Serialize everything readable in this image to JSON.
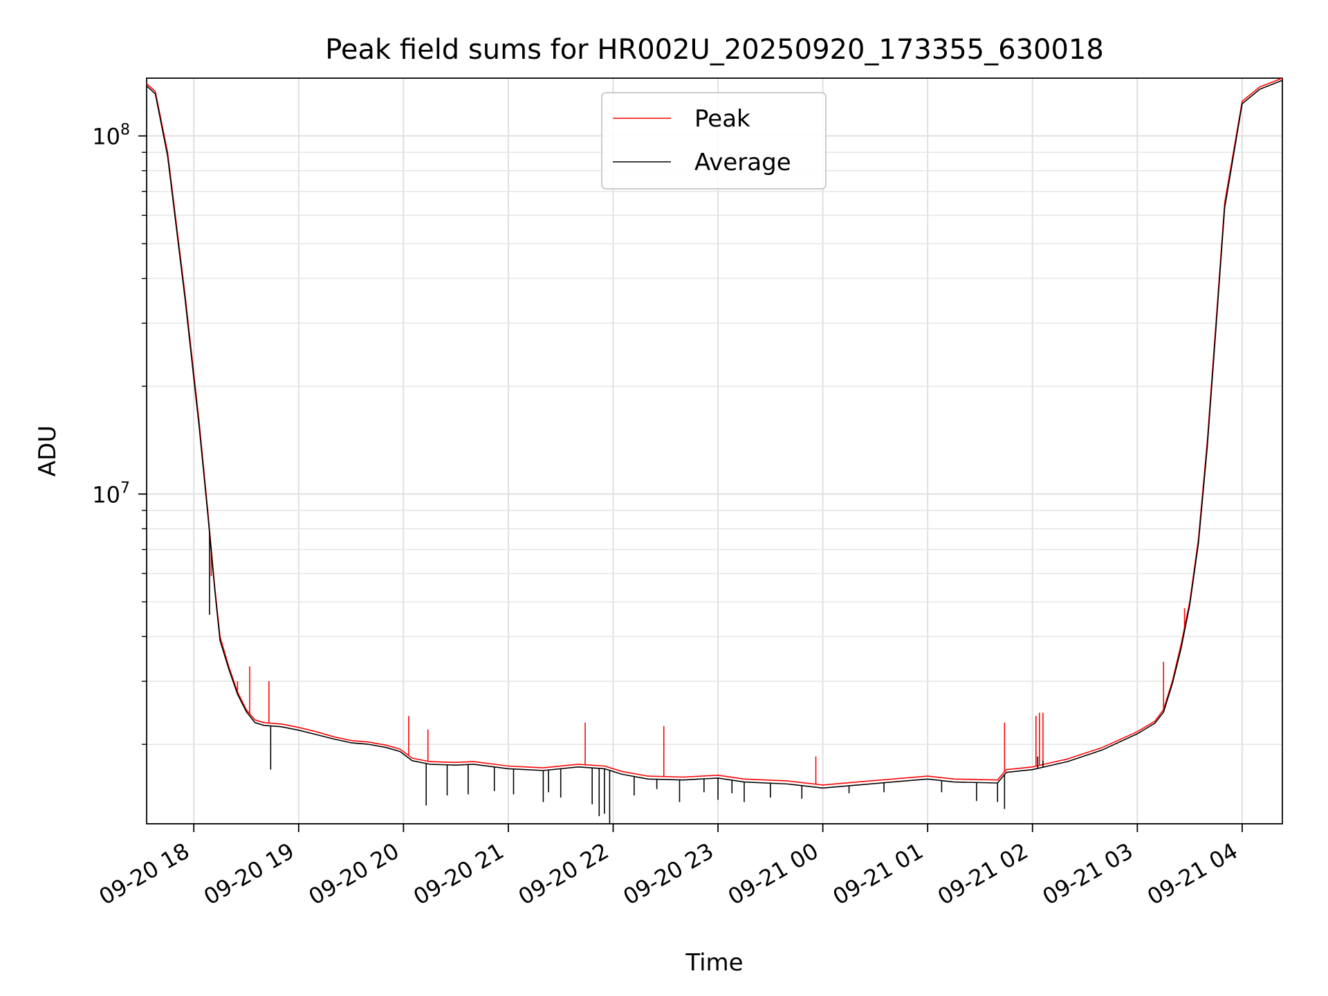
{
  "chart_data": {
    "type": "line",
    "title": "Peak field sums for HR002U_20250920_173355_630018",
    "xlabel": "Time",
    "ylabel": "ADU",
    "yscale": "log",
    "ylim": [
      1200000,
      145000000
    ],
    "xlim": [
      "09-20 17:33",
      "09-21 04:23"
    ],
    "grid": true,
    "legend": "upper center",
    "xticks": [
      {
        "t": "09-20 18:00",
        "label": "09-20 18"
      },
      {
        "t": "09-20 19:00",
        "label": "09-20 19"
      },
      {
        "t": "09-20 20:00",
        "label": "09-20 20"
      },
      {
        "t": "09-20 21:00",
        "label": "09-20 21"
      },
      {
        "t": "09-20 22:00",
        "label": "09-20 22"
      },
      {
        "t": "09-20 23:00",
        "label": "09-20 23"
      },
      {
        "t": "09-21 00:00",
        "label": "09-21 00"
      },
      {
        "t": "09-21 01:00",
        "label": "09-21 01"
      },
      {
        "t": "09-21 02:00",
        "label": "09-21 02"
      },
      {
        "t": "09-21 03:00",
        "label": "09-21 03"
      },
      {
        "t": "09-21 04:00",
        "label": "09-21 04"
      }
    ],
    "yticks": [
      {
        "value": 10000000,
        "base": "10",
        "exp": "7"
      },
      {
        "value": 100000000,
        "base": "10",
        "exp": "8"
      }
    ],
    "colors": {
      "peak": "#ff0000",
      "average": "#000000"
    },
    "series": [
      {
        "name": "Peak",
        "color": "#ff0000",
        "points": [
          [
            "09-20 17:33",
            140000000
          ],
          [
            "09-20 17:38",
            133000000
          ],
          [
            "09-20 17:45",
            90000000
          ],
          [
            "09-20 17:55",
            36000000
          ],
          [
            "09-20 18:03",
            16000000
          ],
          [
            "09-20 18:08",
            9000000
          ],
          [
            "09-20 18:12",
            5500000
          ],
          [
            "09-20 18:15",
            4000000
          ],
          [
            "09-20 18:20",
            3300000
          ],
          [
            "09-20 18:25",
            2800000
          ],
          [
            "09-20 18:30",
            2500000
          ],
          [
            "09-20 18:35",
            2340000
          ],
          [
            "09-20 18:40",
            2300000
          ],
          [
            "09-20 18:50",
            2280000
          ],
          [
            "09-20 19:00",
            2230000
          ],
          [
            "09-20 19:10",
            2170000
          ],
          [
            "09-20 19:20",
            2100000
          ],
          [
            "09-20 19:30",
            2050000
          ],
          [
            "09-20 19:40",
            2030000
          ],
          [
            "09-20 19:50",
            1990000
          ],
          [
            "09-20 19:58",
            1940000
          ],
          [
            "09-20 20:05",
            1830000
          ],
          [
            "09-20 20:15",
            1790000
          ],
          [
            "09-20 20:30",
            1780000
          ],
          [
            "09-20 20:40",
            1790000
          ],
          [
            "09-20 21:00",
            1740000
          ],
          [
            "09-20 21:20",
            1720000
          ],
          [
            "09-20 21:40",
            1760000
          ],
          [
            "09-20 21:55",
            1740000
          ],
          [
            "09-20 22:05",
            1680000
          ],
          [
            "09-20 22:20",
            1630000
          ],
          [
            "09-20 22:40",
            1620000
          ],
          [
            "09-20 23:00",
            1640000
          ],
          [
            "09-20 23:15",
            1600000
          ],
          [
            "09-20 23:40",
            1580000
          ],
          [
            "09-21 00:00",
            1540000
          ],
          [
            "09-21 00:20",
            1570000
          ],
          [
            "09-21 00:40",
            1600000
          ],
          [
            "09-21 01:00",
            1630000
          ],
          [
            "09-21 01:15",
            1600000
          ],
          [
            "09-21 01:40",
            1590000
          ],
          [
            "09-21 01:45",
            1700000
          ],
          [
            "09-21 02:00",
            1730000
          ],
          [
            "09-21 02:20",
            1820000
          ],
          [
            "09-21 02:40",
            1960000
          ],
          [
            "09-21 03:00",
            2170000
          ],
          [
            "09-21 03:10",
            2320000
          ],
          [
            "09-21 03:15",
            2500000
          ],
          [
            "09-21 03:20",
            3000000
          ],
          [
            "09-21 03:25",
            3800000
          ],
          [
            "09-21 03:30",
            5000000
          ],
          [
            "09-21 03:35",
            7500000
          ],
          [
            "09-21 03:40",
            14000000
          ],
          [
            "09-21 03:45",
            30000000
          ],
          [
            "09-21 03:50",
            65000000
          ],
          [
            "09-21 04:00",
            125000000
          ],
          [
            "09-21 04:10",
            137000000
          ],
          [
            "09-21 04:23",
            145000000
          ]
        ],
        "spikes": [
          [
            "09-20 18:10",
            5900000
          ],
          [
            "09-20 18:25",
            3000000
          ],
          [
            "09-20 18:32",
            3300000
          ],
          [
            "09-20 18:43",
            3000000
          ],
          [
            "09-20 20:03",
            2400000
          ],
          [
            "09-20 20:14",
            2200000
          ],
          [
            "09-20 21:44",
            2300000
          ],
          [
            "09-20 22:29",
            2250000
          ],
          [
            "09-20 23:56",
            1850000
          ],
          [
            "09-21 01:44",
            2300000
          ],
          [
            "09-21 02:02",
            2400000
          ],
          [
            "09-21 02:04",
            2450000
          ],
          [
            "09-21 02:06",
            2450000
          ],
          [
            "09-21 03:15",
            3400000
          ],
          [
            "09-21 03:27",
            4800000
          ],
          [
            "09-21 03:36",
            8300000
          ]
        ]
      },
      {
        "name": "Average",
        "color": "#000000",
        "points": [
          [
            "09-20 17:33",
            138000000
          ],
          [
            "09-20 17:38",
            131000000
          ],
          [
            "09-20 17:45",
            88000000
          ],
          [
            "09-20 17:55",
            35000000
          ],
          [
            "09-20 18:03",
            15500000
          ],
          [
            "09-20 18:08",
            8800000
          ],
          [
            "09-20 18:12",
            5400000
          ],
          [
            "09-20 18:15",
            3900000
          ],
          [
            "09-20 18:20",
            3250000
          ],
          [
            "09-20 18:25",
            2760000
          ],
          [
            "09-20 18:30",
            2470000
          ],
          [
            "09-20 18:35",
            2300000
          ],
          [
            "09-20 18:40",
            2260000
          ],
          [
            "09-20 18:50",
            2240000
          ],
          [
            "09-20 19:00",
            2190000
          ],
          [
            "09-20 19:10",
            2130000
          ],
          [
            "09-20 19:20",
            2070000
          ],
          [
            "09-20 19:30",
            2020000
          ],
          [
            "09-20 19:40",
            2000000
          ],
          [
            "09-20 19:50",
            1960000
          ],
          [
            "09-20 19:58",
            1910000
          ],
          [
            "09-20 20:05",
            1800000
          ],
          [
            "09-20 20:15",
            1760000
          ],
          [
            "09-20 20:30",
            1750000
          ],
          [
            "09-20 20:40",
            1760000
          ],
          [
            "09-20 21:00",
            1710000
          ],
          [
            "09-20 21:20",
            1690000
          ],
          [
            "09-20 21:40",
            1730000
          ],
          [
            "09-20 21:55",
            1710000
          ],
          [
            "09-20 22:05",
            1650000
          ],
          [
            "09-20 22:20",
            1600000
          ],
          [
            "09-20 22:40",
            1590000
          ],
          [
            "09-20 23:00",
            1610000
          ],
          [
            "09-20 23:15",
            1570000
          ],
          [
            "09-20 23:40",
            1550000
          ],
          [
            "09-21 00:00",
            1510000
          ],
          [
            "09-21 00:20",
            1540000
          ],
          [
            "09-21 00:40",
            1570000
          ],
          [
            "09-21 01:00",
            1600000
          ],
          [
            "09-21 01:15",
            1570000
          ],
          [
            "09-21 01:40",
            1560000
          ],
          [
            "09-21 01:45",
            1670000
          ],
          [
            "09-21 02:00",
            1700000
          ],
          [
            "09-21 02:20",
            1790000
          ],
          [
            "09-21 02:40",
            1930000
          ],
          [
            "09-21 03:00",
            2140000
          ],
          [
            "09-21 03:10",
            2290000
          ],
          [
            "09-21 03:15",
            2460000
          ],
          [
            "09-21 03:20",
            2950000
          ],
          [
            "09-21 03:25",
            3700000
          ],
          [
            "09-21 03:30",
            4900000
          ],
          [
            "09-21 03:35",
            7300000
          ],
          [
            "09-21 03:40",
            13500000
          ],
          [
            "09-21 03:45",
            29000000
          ],
          [
            "09-21 03:50",
            63000000
          ],
          [
            "09-21 04:00",
            123000000
          ],
          [
            "09-21 04:10",
            135000000
          ],
          [
            "09-21 04:23",
            143000000
          ]
        ],
        "spikes": [
          [
            "09-20 18:09",
            4600000
          ],
          [
            "09-20 18:44",
            1700000
          ],
          [
            "09-20 20:13",
            1350000
          ],
          [
            "09-20 20:25",
            1440000
          ],
          [
            "09-20 20:37",
            1450000
          ],
          [
            "09-20 20:52",
            1480000
          ],
          [
            "09-20 21:03",
            1450000
          ],
          [
            "09-20 21:20",
            1380000
          ],
          [
            "09-20 21:23",
            1470000
          ],
          [
            "09-20 21:30",
            1420000
          ],
          [
            "09-20 21:48",
            1360000
          ],
          [
            "09-20 21:52",
            1260000
          ],
          [
            "09-20 21:55",
            1280000
          ],
          [
            "09-20 21:58",
            1200000
          ],
          [
            "09-20 22:12",
            1440000
          ],
          [
            "09-20 22:25",
            1500000
          ],
          [
            "09-20 22:38",
            1380000
          ],
          [
            "09-20 22:52",
            1470000
          ],
          [
            "09-20 23:00",
            1400000
          ],
          [
            "09-20 23:08",
            1460000
          ],
          [
            "09-20 23:15",
            1380000
          ],
          [
            "09-20 23:30",
            1420000
          ],
          [
            "09-20 23:48",
            1410000
          ],
          [
            "09-21 00:15",
            1460000
          ],
          [
            "09-21 00:35",
            1470000
          ],
          [
            "09-21 01:08",
            1470000
          ],
          [
            "09-21 01:28",
            1390000
          ],
          [
            "09-21 01:40",
            1380000
          ],
          [
            "09-21 01:44",
            1320000
          ],
          [
            "09-21 02:03",
            1850000
          ],
          [
            "09-21 02:06",
            1800000
          ]
        ]
      }
    ]
  }
}
